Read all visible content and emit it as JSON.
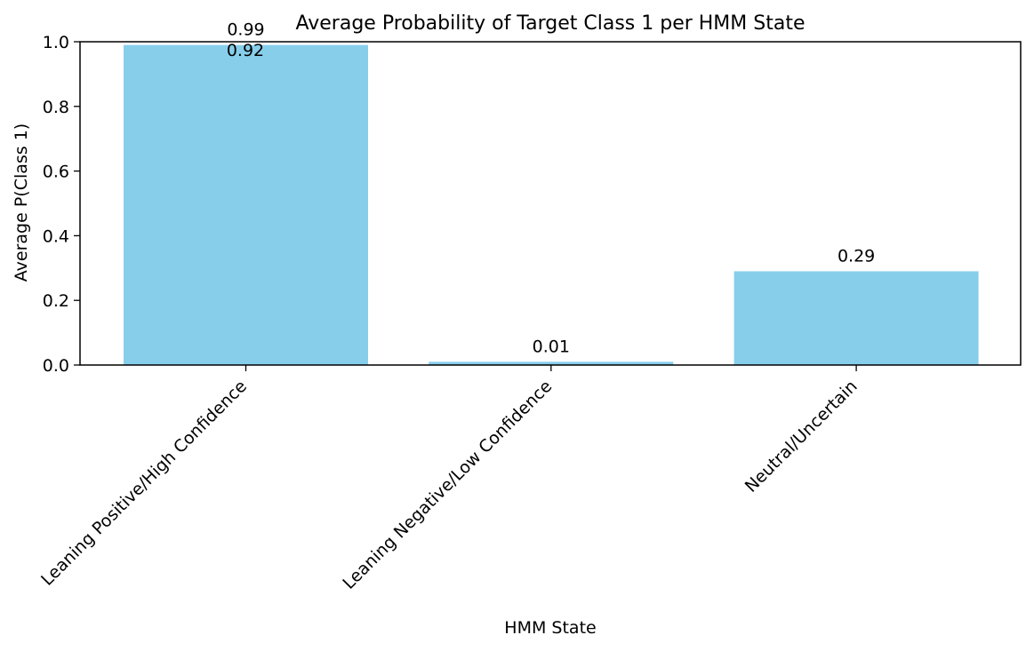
{
  "chart_data": {
    "type": "bar",
    "title": "Average Probability of Target Class 1 per HMM State",
    "xlabel": "HMM State",
    "ylabel": "Average P(Class 1)",
    "ylim": [
      0,
      1.0
    ],
    "yticks": [
      "0.0",
      "0.2",
      "0.4",
      "0.6",
      "0.8",
      "1.0"
    ],
    "categories": [
      "Leaning Positive/High Confidence",
      "Leaning Negative/Low Confidence",
      "Neutral/Uncertain"
    ],
    "values": [
      0.99,
      0.01,
      0.29
    ],
    "bar_labels": [
      "0.99",
      "0.01",
      "0.29"
    ],
    "annotations": [
      "0.92"
    ],
    "bar_color": "#87ceeb",
    "grid": false,
    "legend": "none"
  }
}
